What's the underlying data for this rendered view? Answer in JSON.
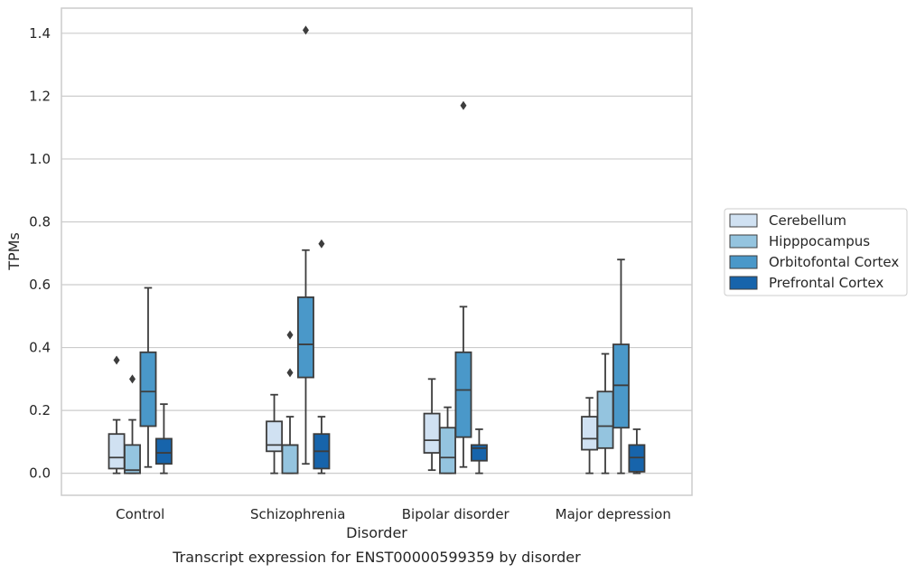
{
  "chart_data": {
    "type": "box",
    "caption": "Transcript expression for ENST00000599359 by disorder",
    "xlabel": "Disorder",
    "ylabel": "TPMs",
    "ylim": [
      -0.07,
      1.48
    ],
    "yticks": [
      0.0,
      0.2,
      0.4,
      0.6,
      0.8,
      1.0,
      1.2,
      1.4
    ],
    "ytick_labels": [
      "0.0",
      "0.2",
      "0.4",
      "0.6",
      "0.8",
      "1.0",
      "1.2",
      "1.4"
    ],
    "grid": "horizontal",
    "legend_position": "right",
    "categories": [
      "Control",
      "Schizophrenia",
      "Bipolar disorder",
      "Major depression"
    ],
    "series": [
      {
        "name": "Cerebellum",
        "color": "#d0e1f2",
        "boxes": [
          {
            "whisker_low": 0.0,
            "q1": 0.015,
            "median": 0.05,
            "q3": 0.125,
            "whisker_high": 0.17,
            "outliers": [
              0.36
            ]
          },
          {
            "whisker_low": 0.0,
            "q1": 0.07,
            "median": 0.09,
            "q3": 0.165,
            "whisker_high": 0.25,
            "outliers": []
          },
          {
            "whisker_low": 0.01,
            "q1": 0.065,
            "median": 0.105,
            "q3": 0.19,
            "whisker_high": 0.3,
            "outliers": []
          },
          {
            "whisker_low": 0.0,
            "q1": 0.075,
            "median": 0.11,
            "q3": 0.18,
            "whisker_high": 0.24,
            "outliers": []
          }
        ]
      },
      {
        "name": "Hipppocampus",
        "color": "#94c4df",
        "boxes": [
          {
            "whisker_low": 0.0,
            "q1": 0.0,
            "median": 0.01,
            "q3": 0.09,
            "whisker_high": 0.17,
            "outliers": [
              0.3
            ]
          },
          {
            "whisker_low": 0.0,
            "q1": 0.0,
            "median": 0.09,
            "q3": 0.09,
            "whisker_high": 0.18,
            "outliers": [
              0.32,
              0.44
            ]
          },
          {
            "whisker_low": 0.0,
            "q1": 0.0,
            "median": 0.05,
            "q3": 0.145,
            "whisker_high": 0.21,
            "outliers": []
          },
          {
            "whisker_low": 0.0,
            "q1": 0.08,
            "median": 0.15,
            "q3": 0.26,
            "whisker_high": 0.38,
            "outliers": []
          }
        ]
      },
      {
        "name": "Orbitofontal Cortex",
        "color": "#4a98c9",
        "boxes": [
          {
            "whisker_low": 0.02,
            "q1": 0.15,
            "median": 0.26,
            "q3": 0.385,
            "whisker_high": 0.59,
            "outliers": []
          },
          {
            "whisker_low": 0.03,
            "q1": 0.305,
            "median": 0.41,
            "q3": 0.56,
            "whisker_high": 0.71,
            "outliers": [
              1.41
            ]
          },
          {
            "whisker_low": 0.02,
            "q1": 0.115,
            "median": 0.265,
            "q3": 0.385,
            "whisker_high": 0.53,
            "outliers": [
              1.17
            ]
          },
          {
            "whisker_low": 0.0,
            "q1": 0.145,
            "median": 0.28,
            "q3": 0.41,
            "whisker_high": 0.68,
            "outliers": []
          }
        ]
      },
      {
        "name": "Prefrontal Cortex",
        "color": "#1764ab",
        "boxes": [
          {
            "whisker_low": 0.0,
            "q1": 0.03,
            "median": 0.065,
            "q3": 0.11,
            "whisker_high": 0.22,
            "outliers": []
          },
          {
            "whisker_low": 0.0,
            "q1": 0.015,
            "median": 0.07,
            "q3": 0.125,
            "whisker_high": 0.18,
            "outliers": [
              0.73
            ]
          },
          {
            "whisker_low": 0.0,
            "q1": 0.04,
            "median": 0.08,
            "q3": 0.09,
            "whisker_high": 0.14,
            "outliers": []
          },
          {
            "whisker_low": 0.0,
            "q1": 0.005,
            "median": 0.05,
            "q3": 0.09,
            "whisker_high": 0.14,
            "outliers": []
          }
        ]
      }
    ]
  }
}
